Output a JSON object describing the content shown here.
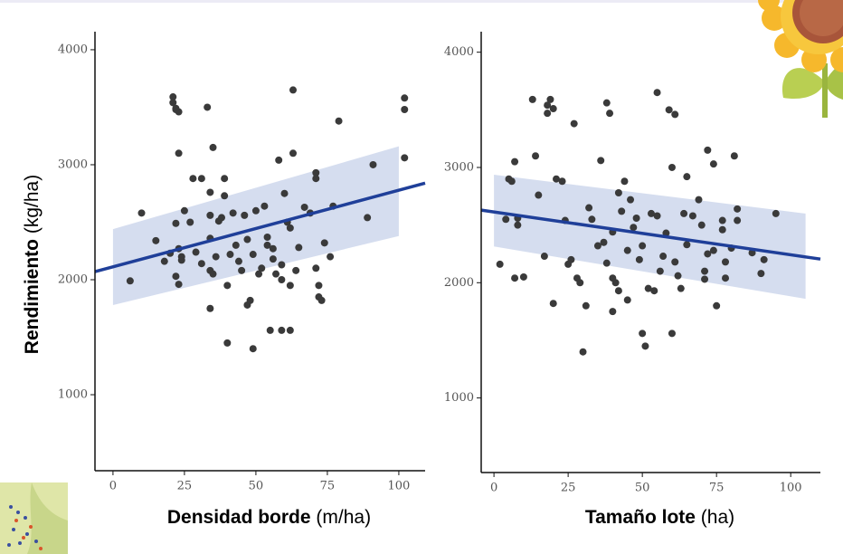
{
  "chart_data": [
    {
      "type": "scatter",
      "x_label": {
        "bold": "Densidad borde",
        "unit": "(m/ha)"
      },
      "y_label": {
        "bold": "Rendimiento",
        "unit": "(kg/ha)"
      },
      "xlim": [
        -6.3,
        109.2
      ],
      "ylim": [
        339,
        4157
      ],
      "xticks": [
        0,
        25,
        50,
        75,
        100
      ],
      "yticks": [
        1000,
        2000,
        3000,
        4000
      ],
      "color": "#3a3a3a",
      "fit_color": "#1f3f99",
      "band_color": "#c7d1ea",
      "x": [
        6,
        10,
        15,
        18,
        20,
        21,
        21,
        22,
        23,
        22,
        22,
        22,
        23,
        23,
        24,
        24,
        23,
        25,
        27,
        28,
        29,
        31,
        31,
        33,
        34,
        34,
        34,
        34,
        34,
        35,
        35,
        36,
        37,
        38,
        39,
        39,
        40,
        40,
        41,
        42,
        43,
        44,
        45,
        46,
        47,
        47,
        48,
        49,
        49,
        50,
        51,
        52,
        53,
        54,
        54,
        55,
        56,
        56,
        57,
        58,
        59,
        59,
        59,
        60,
        61,
        62,
        62,
        62,
        63,
        63,
        64,
        65,
        67,
        69,
        71,
        71,
        71,
        72,
        72,
        73,
        74,
        76,
        77,
        79,
        89,
        91,
        102,
        102,
        102
      ],
      "values": [
        1990,
        2580,
        2340,
        2160,
        2230,
        3590,
        3540,
        3480,
        3460,
        3490,
        2490,
        2030,
        1960,
        2270,
        2200,
        2170,
        3100,
        2600,
        2500,
        2880,
        2240,
        2880,
        2140,
        3500,
        2760,
        2560,
        2360,
        2080,
        1750,
        3150,
        2050,
        2200,
        2510,
        2540,
        2730,
        2880,
        1450,
        1950,
        2220,
        2580,
        2300,
        2160,
        2080,
        2560,
        1780,
        2350,
        1820,
        1400,
        2220,
        2600,
        2050,
        2100,
        2640,
        2370,
        2300,
        1560,
        2270,
        2180,
        2050,
        3040,
        1560,
        2130,
        2000,
        2750,
        2500,
        1560,
        1950,
        2450,
        3100,
        3650,
        2080,
        2280,
        2630,
        2580,
        2100,
        2880,
        2930,
        1950,
        1850,
        1820,
        2320,
        2200,
        2640,
        3380,
        2540,
        3000,
        3580,
        3480,
        3060
      ],
      "fit": {
        "x": [
          -6.3,
          109.2
        ],
        "y": [
          2070,
          2840
        ]
      },
      "band": {
        "x": [
          0,
          100
        ],
        "upper": [
          2440,
          3160
        ],
        "lower": [
          1780,
          2380
        ]
      }
    },
    {
      "type": "scatter",
      "x_label": {
        "bold": "Tamaño lote",
        "unit": "(ha)"
      },
      "xlim": [
        -4.3,
        110
      ],
      "ylim": [
        353,
        4178
      ],
      "xticks": [
        0,
        25,
        50,
        75,
        100
      ],
      "yticks": [
        1000,
        2000,
        3000,
        4000
      ],
      "color": "#3a3a3a",
      "fit_color": "#1f3f99",
      "band_color": "#c7d1ea",
      "x": [
        2,
        4,
        5,
        6,
        7,
        7,
        8,
        8,
        10,
        13,
        14,
        15,
        17,
        18,
        18,
        19,
        20,
        20,
        21,
        23,
        24,
        25,
        26,
        27,
        28,
        29,
        30,
        31,
        32,
        33,
        35,
        36,
        37,
        38,
        38,
        39,
        40,
        40,
        40,
        41,
        42,
        42,
        43,
        44,
        45,
        45,
        46,
        47,
        48,
        49,
        50,
        50,
        51,
        52,
        53,
        54,
        55,
        56,
        55,
        57,
        58,
        59,
        60,
        60,
        61,
        61,
        62,
        63,
        64,
        65,
        65,
        67,
        69,
        70,
        71,
        71,
        72,
        72,
        74,
        74,
        75,
        77,
        77,
        78,
        78,
        80,
        81,
        82,
        82,
        87,
        90,
        91,
        95
      ],
      "values": [
        2160,
        2550,
        2900,
        2880,
        3050,
        2040,
        2500,
        2560,
        2050,
        3590,
        3100,
        2760,
        2230,
        3540,
        3470,
        3590,
        3510,
        1820,
        2900,
        2880,
        2540,
        2160,
        2200,
        3380,
        2040,
        2000,
        1400,
        1800,
        2650,
        2550,
        2320,
        3060,
        2350,
        3560,
        2170,
        3470,
        2440,
        1750,
        2040,
        2000,
        1930,
        2780,
        2620,
        2880,
        1850,
        2280,
        2720,
        2480,
        2560,
        2200,
        2320,
        1560,
        1450,
        1950,
        2600,
        1930,
        2580,
        2100,
        3650,
        2230,
        2430,
        3500,
        3000,
        1560,
        3460,
        2180,
        2060,
        1950,
        2600,
        2330,
        2920,
        2580,
        2720,
        2500,
        2100,
        2030,
        2250,
        3150,
        2280,
        3030,
        1800,
        2540,
        2460,
        2180,
        2040,
        2300,
        3100,
        2540,
        2640,
        2260,
        2080,
        2200,
        2600
      ],
      "fit": {
        "x": [
          -4.3,
          110
        ],
        "y": [
          2630,
          2205
        ]
      },
      "band": {
        "x": [
          0,
          105
        ],
        "upper": [
          2937,
          2600
        ],
        "lower": [
          2315,
          1860
        ]
      }
    }
  ]
}
